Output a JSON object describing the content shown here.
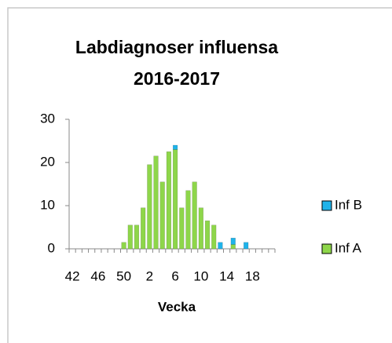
{
  "chart_data": {
    "type": "stacked_bar",
    "title": "Labdiagnoser influensa 2016-2017",
    "xlabel": "Vecka",
    "categories": [
      "42",
      null,
      null,
      null,
      "46",
      null,
      null,
      null,
      "50",
      null,
      null,
      null,
      "2",
      null,
      null,
      null,
      "6",
      null,
      null,
      null,
      "10",
      null,
      null,
      null,
      "14",
      null,
      null,
      null,
      "18",
      null,
      null,
      null
    ],
    "series": [
      {
        "name": "Inf A",
        "color": "#8ed64a",
        "values": [
          0,
          0,
          0,
          0,
          0,
          0,
          0,
          0,
          1.5,
          5.5,
          5.5,
          9.5,
          19.5,
          21.5,
          15.5,
          22.5,
          23,
          9.5,
          13.5,
          15.5,
          9.5,
          6.5,
          5.5,
          0,
          0,
          1,
          0,
          0,
          0,
          0,
          0,
          0
        ]
      },
      {
        "name": "Inf B",
        "color": "#1fb3ea",
        "values": [
          0,
          0,
          0,
          0,
          0,
          0,
          0,
          0,
          0,
          0,
          0,
          0,
          0,
          0,
          0,
          0,
          1,
          0,
          0,
          0,
          0,
          0,
          0,
          1.5,
          0,
          1.5,
          0,
          1.5,
          0,
          0,
          0,
          0
        ]
      }
    ],
    "ylim": [
      0,
      30
    ],
    "yticks": [
      0,
      10,
      20,
      30
    ],
    "grid": false,
    "legend": "right"
  }
}
